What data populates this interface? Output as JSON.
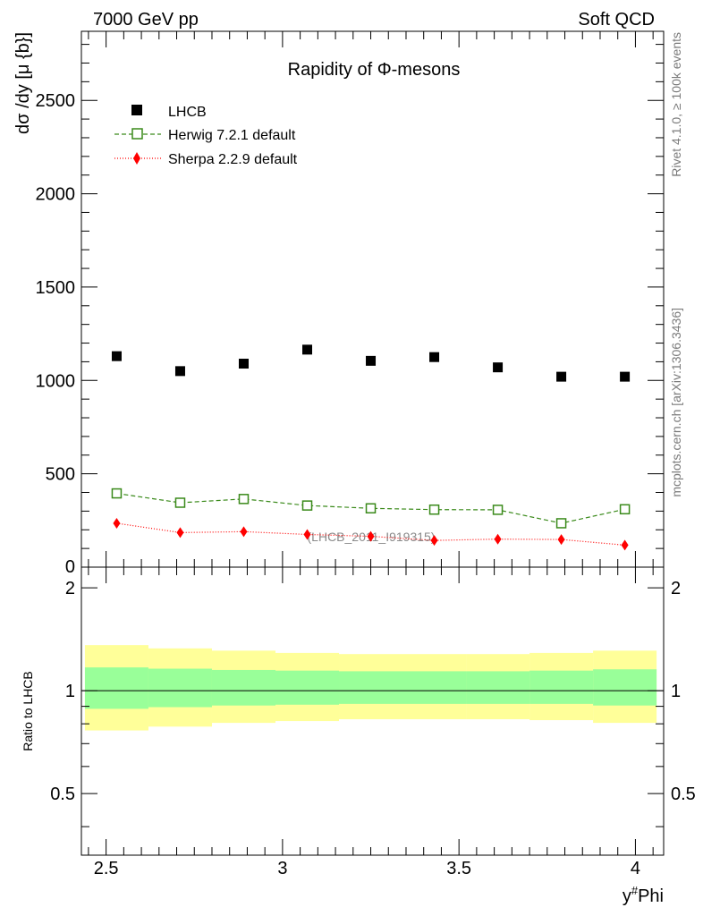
{
  "header": {
    "left": "7000 GeV pp",
    "right": "Soft QCD"
  },
  "side_labels": {
    "rivet": "Rivet 4.1.0, ≥ 100k events",
    "source": "mcplots.cern.ch [arXiv:1306.3436]"
  },
  "watermark": "(LHCB_2011_I919315)",
  "colors": {
    "lhcb": "#000000",
    "herwig": "#3a8a1a",
    "sherpa": "#ff0000",
    "band_outer": "#ffff99",
    "band_inner": "#99ff99"
  },
  "chart_data": [
    {
      "type": "scatter",
      "title": "Rapidity of Φ-mesons",
      "ylabel": "dσ /dy [μ {b}]",
      "xlabel": "",
      "xlim": [
        2.43,
        4.08
      ],
      "ylim": [
        0,
        2870
      ],
      "y_ticks": [
        "500",
        "1000",
        "1500",
        "2000",
        "2500"
      ],
      "y_zero_label": "0",
      "x": [
        2.53,
        2.71,
        2.89,
        3.07,
        3.25,
        3.43,
        3.61,
        3.79,
        3.97
      ],
      "series": [
        {
          "name": "LHCB",
          "marker": "filled-square",
          "values": [
            1130,
            1050,
            1090,
            1165,
            1105,
            1125,
            1070,
            1020,
            1020
          ]
        },
        {
          "name": "Herwig 7.2.1 default",
          "marker": "open-square",
          "line": "dashed",
          "values": [
            395,
            345,
            365,
            330,
            315,
            308,
            307,
            235,
            310
          ]
        },
        {
          "name": "Sherpa 2.2.9 default",
          "marker": "diamond",
          "line": "dotted",
          "values": [
            235,
            185,
            190,
            175,
            165,
            143,
            150,
            148,
            118
          ]
        }
      ]
    },
    {
      "type": "area",
      "title": "",
      "ylabel": "Ratio to LHCB",
      "xlabel": "y#Phi",
      "xlim": [
        2.43,
        4.08
      ],
      "ylim": [
        0.33,
        2.3
      ],
      "y_ticks": [
        "0.5",
        "1",
        "2"
      ],
      "x_ticks": [
        "2.5",
        "3",
        "3.5",
        "4"
      ],
      "bins": [
        {
          "lo": 2.44,
          "hi": 2.62,
          "inner": [
            0.885,
            1.17
          ],
          "outer": [
            0.765,
            1.36
          ]
        },
        {
          "lo": 2.62,
          "hi": 2.8,
          "inner": [
            0.895,
            1.16
          ],
          "outer": [
            0.785,
            1.33
          ]
        },
        {
          "lo": 2.8,
          "hi": 2.98,
          "inner": [
            0.905,
            1.15
          ],
          "outer": [
            0.805,
            1.31
          ]
        },
        {
          "lo": 2.98,
          "hi": 3.16,
          "inner": [
            0.91,
            1.145
          ],
          "outer": [
            0.815,
            1.29
          ]
        },
        {
          "lo": 3.16,
          "hi": 3.52,
          "inner": [
            0.915,
            1.14
          ],
          "outer": [
            0.825,
            1.28
          ]
        },
        {
          "lo": 3.52,
          "hi": 3.7,
          "inner": [
            0.915,
            1.14
          ],
          "outer": [
            0.825,
            1.28
          ]
        },
        {
          "lo": 3.7,
          "hi": 3.88,
          "inner": [
            0.915,
            1.145
          ],
          "outer": [
            0.82,
            1.29
          ]
        },
        {
          "lo": 3.88,
          "hi": 4.06,
          "inner": [
            0.905,
            1.155
          ],
          "outer": [
            0.805,
            1.31
          ]
        }
      ],
      "reference_line": 1
    }
  ]
}
